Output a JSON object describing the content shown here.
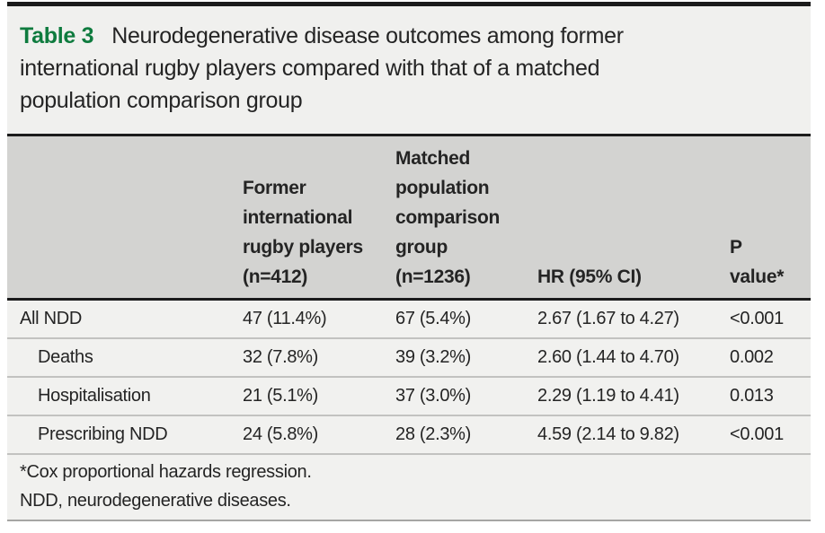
{
  "table": {
    "caption": {
      "label": "Table 3",
      "title": "Neurodegenerative disease outcomes among former\ninternational rugby players compared with that of a matched\npopulation comparison group"
    },
    "columns": [
      "",
      "Former\ninternational\nrugby players\n(n=412)",
      "Matched\npopulation\ncomparison\ngroup\n(n=1236)",
      "HR (95% CI)",
      "P\nvalue*"
    ],
    "rows": [
      {
        "label": "All NDD",
        "former": "47 (11.4%)",
        "matched": "67 (5.4%)",
        "hr": "2.67 (1.67 to 4.27)",
        "p": "<0.001"
      },
      {
        "label": "Deaths",
        "former": "32 (7.8%)",
        "matched": "39 (3.2%)",
        "hr": "2.60 (1.44 to 4.70)",
        "p": "0.002"
      },
      {
        "label": "Hospitalisation",
        "former": "21 (5.1%)",
        "matched": "37 (3.0%)",
        "hr": "2.29 (1.19 to 4.41)",
        "p": "0.013"
      },
      {
        "label": "Prescribing NDD",
        "former": "24 (5.8%)",
        "matched": "28 (2.3%)",
        "hr": "4.59 (2.14 to 9.82)",
        "p": "<0.001"
      }
    ],
    "footnotes": [
      "*Cox proportional hazards regression.",
      "NDD, neurodegenerative diseases."
    ],
    "colors": {
      "caption_label_green": "#0e7b3e",
      "rule_black": "#1b1b1b",
      "header_bg": "#d3d3d1",
      "body_bg": "#f1f1ef",
      "caption_bg": "#f0f0ee",
      "separator_gray": "#c2c2c0"
    }
  }
}
